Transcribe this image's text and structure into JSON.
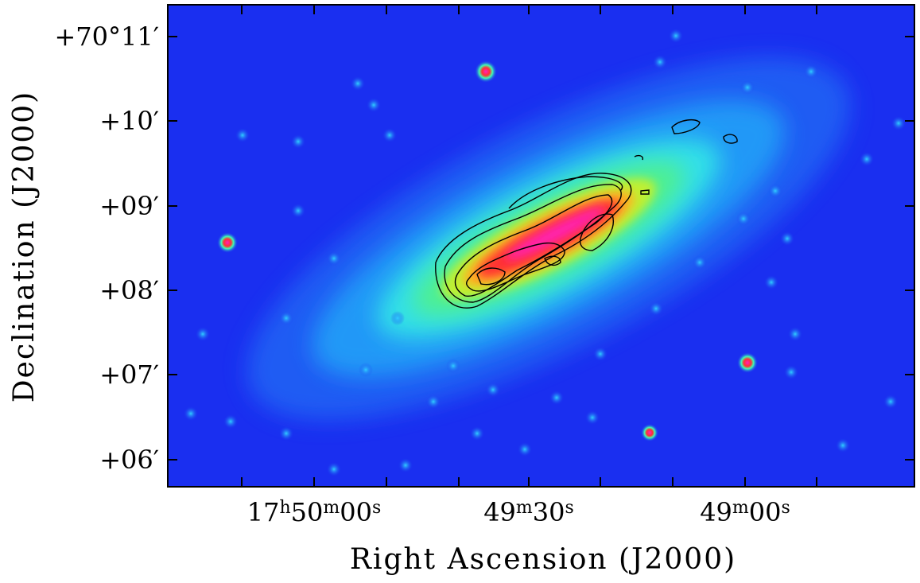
{
  "axes": {
    "x_label": "Right Ascension (J2000)",
    "y_label": "Declination (J2000)",
    "x_ticks": [
      [
        {
          "text": "17"
        },
        {
          "text": "h",
          "sup": true
        },
        {
          "text": "50"
        },
        {
          "text": "m",
          "sup": true
        },
        {
          "text": "00"
        },
        {
          "text": "s",
          "sup": true
        }
      ],
      [
        {
          "text": "49"
        },
        {
          "text": "m",
          "sup": true
        },
        {
          "text": "30"
        },
        {
          "text": "s",
          "sup": true
        }
      ],
      [
        {
          "text": "49"
        },
        {
          "text": "m",
          "sup": true
        },
        {
          "text": "00"
        },
        {
          "text": "s",
          "sup": true
        }
      ]
    ],
    "y_ticks": [
      "+70°11′",
      "+10′",
      "+09′",
      "+08′",
      "+07′",
      "+06′"
    ]
  }
}
